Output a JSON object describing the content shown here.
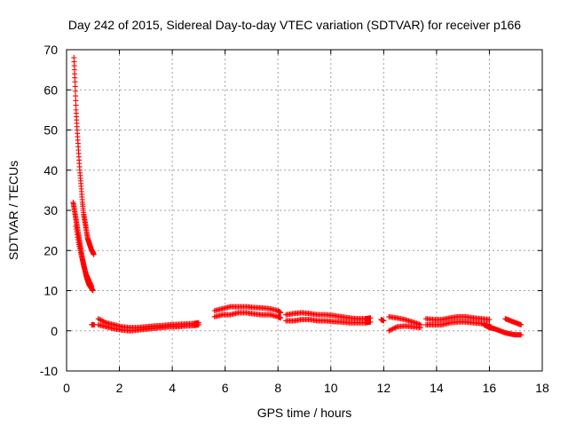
{
  "chart_data": {
    "type": "scatter",
    "title": "Day 242 of 2015, Sidereal Day-to-day VTEC variation (SDTVAR) for receiver p166",
    "xlabel": "GPS time / hours",
    "ylabel": "SDTVAR / TECUs",
    "xlim": [
      0,
      18
    ],
    "ylim": [
      -10,
      70
    ],
    "xticks": [
      0,
      2,
      4,
      6,
      8,
      10,
      12,
      14,
      16,
      18
    ],
    "yticks": [
      -10,
      0,
      10,
      20,
      30,
      40,
      50,
      60,
      70
    ],
    "grid": true,
    "marker": "plus",
    "series_color": "#ff0000",
    "series": [
      {
        "name": "SDTVAR",
        "segments": [
          {
            "x": [
              0.28,
              0.32,
              0.36,
              0.4,
              0.45,
              0.5,
              0.55,
              0.6,
              0.65,
              0.7,
              0.75,
              0.8,
              0.85,
              0.9,
              0.95,
              1.0,
              1.03
            ],
            "y": [
              68,
              62,
              55,
              50,
              45,
              40,
              36,
              32,
              29,
              27,
              25,
              23,
              22,
              21,
              20,
              19.5,
              19
            ]
          },
          {
            "x": [
              0.25,
              0.3,
              0.35,
              0.4,
              0.45,
              0.5,
              0.55,
              0.6,
              0.65,
              0.7,
              0.75,
              0.8,
              0.85,
              0.9,
              0.95,
              1.0
            ],
            "y": [
              32,
              30,
              28,
              26,
              24,
              22,
              20,
              18,
              16.5,
              15,
              13.5,
              12.5,
              11.5,
              11,
              10.5,
              10
            ]
          },
          {
            "x": [
              0.35,
              0.45,
              0.55,
              0.65,
              0.75,
              0.85,
              0.95
            ],
            "y": [
              26,
              22,
              19,
              16,
              14,
              12.5,
              11
            ]
          },
          {
            "x": [
              0.95,
              1.0,
              1.05
            ],
            "y": [
              1.5,
              1.5,
              1.5
            ]
          },
          {
            "x": [
              1.2,
              1.5,
              1.8,
              2.1,
              2.4,
              2.7,
              3.0,
              3.3,
              3.6,
              3.9,
              4.2,
              4.5,
              4.8,
              5.0
            ],
            "y": [
              3.0,
              2.0,
              1.5,
              1.0,
              0.8,
              0.8,
              1.0,
              1.2,
              1.3,
              1.5,
              1.6,
              1.7,
              1.8,
              2.0
            ]
          },
          {
            "x": [
              1.2,
              1.5,
              1.8,
              2.1,
              2.4,
              2.7,
              3.0,
              3.3,
              3.6,
              3.9,
              4.2,
              4.5,
              4.8,
              5.0
            ],
            "y": [
              1.5,
              1.0,
              0.5,
              0.2,
              0.0,
              0.2,
              0.4,
              0.6,
              0.8,
              1.0,
              1.0,
              1.2,
              1.3,
              1.5
            ]
          },
          {
            "x": [
              5.6,
              5.9,
              6.2,
              6.5,
              6.8,
              7.1,
              7.4,
              7.7,
              8.0,
              8.1
            ],
            "y": [
              5.0,
              5.5,
              6.0,
              6.0,
              6.0,
              5.8,
              5.7,
              5.5,
              5.0,
              4.5
            ]
          },
          {
            "x": [
              5.6,
              5.9,
              6.2,
              6.5,
              6.8,
              7.1,
              7.4,
              7.7,
              8.0,
              8.1
            ],
            "y": [
              3.5,
              4.0,
              4.0,
              4.5,
              4.5,
              4.2,
              4.0,
              4.0,
              3.5,
              3.2
            ]
          },
          {
            "x": [
              8.3,
              8.6,
              8.9,
              9.2,
              9.5,
              9.8,
              10.1,
              10.4,
              10.7,
              11.0,
              11.3,
              11.5
            ],
            "y": [
              4.0,
              4.3,
              4.5,
              4.3,
              4.0,
              4.0,
              3.8,
              3.5,
              3.2,
              3.0,
              3.0,
              3.2
            ]
          },
          {
            "x": [
              8.3,
              8.6,
              8.9,
              9.2,
              9.5,
              9.8,
              10.1,
              10.4,
              10.7,
              11.0,
              11.3,
              11.5
            ],
            "y": [
              2.5,
              2.5,
              2.8,
              2.8,
              2.5,
              2.5,
              2.3,
              2.2,
              2.0,
              2.0,
              2.0,
              2.2
            ]
          },
          {
            "x": [
              11.9,
              12.0
            ],
            "y": [
              2.8,
              2.5
            ]
          },
          {
            "x": [
              12.2,
              12.5,
              12.8,
              13.1,
              13.4
            ],
            "y": [
              3.5,
              3.2,
              2.8,
              2.2,
              1.5
            ]
          },
          {
            "x": [
              12.2,
              12.5,
              12.8,
              13.1,
              13.4
            ],
            "y": [
              0.0,
              1.0,
              1.2,
              1.0,
              0.8
            ]
          },
          {
            "x": [
              13.6,
              13.9,
              14.2,
              14.5,
              14.8,
              15.1,
              15.4,
              15.7,
              16.0
            ],
            "y": [
              3.0,
              2.8,
              2.8,
              3.2,
              3.5,
              3.5,
              3.2,
              3.0,
              2.8
            ]
          },
          {
            "x": [
              13.6,
              13.9,
              14.2,
              14.5,
              14.8,
              15.1,
              15.4,
              15.7,
              16.0
            ],
            "y": [
              1.5,
              1.5,
              1.5,
              2.0,
              2.2,
              2.2,
              2.0,
              1.8,
              1.5
            ]
          },
          {
            "x": [
              15.8,
              16.0,
              16.2,
              16.4,
              16.6,
              16.8,
              17.0,
              17.2
            ],
            "y": [
              1.5,
              0.8,
              0.5,
              0.0,
              -0.5,
              -0.8,
              -1.0,
              -1.0
            ]
          },
          {
            "x": [
              16.6,
              16.8,
              17.0,
              17.2
            ],
            "y": [
              3.0,
              2.5,
              2.0,
              1.5
            ]
          }
        ]
      }
    ]
  }
}
